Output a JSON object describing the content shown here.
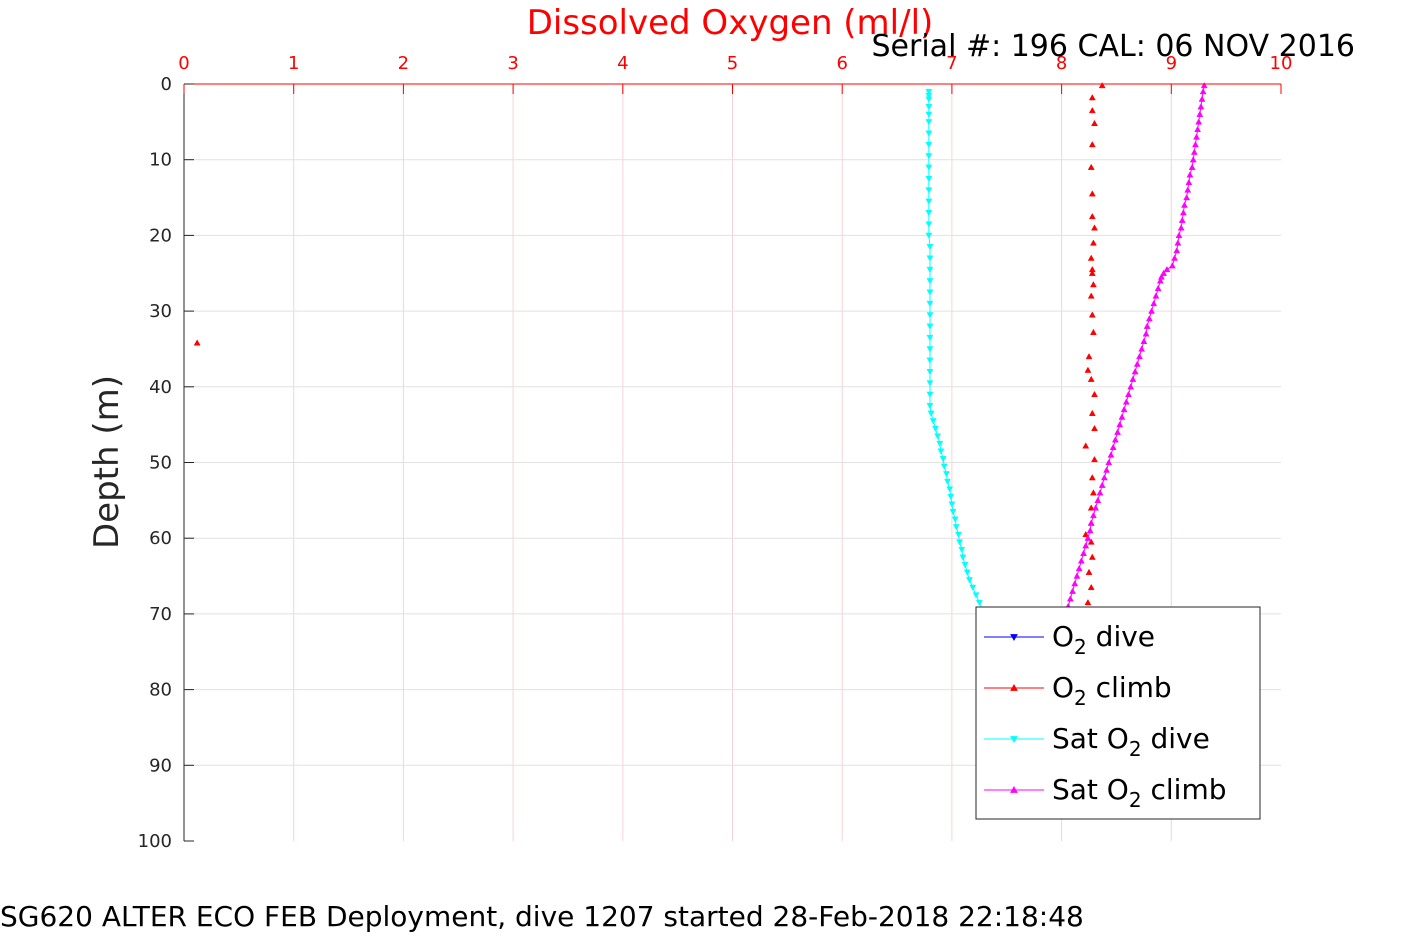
{
  "chart_data": {
    "type": "scatter",
    "x_axis_label": "Dissolved Oxygen (ml/l)",
    "y_axis_label": "Depth (m)",
    "serial_text": "Serial #: 196  CAL: 06 NOV 2016",
    "caption": "SG620 ALTER ECO FEB Deployment, dive 1207 started 28-Feb-2018 22:18:48",
    "xlim": [
      0,
      10
    ],
    "ylim": [
      0,
      100
    ],
    "y_reversed": true,
    "x_axis_position": "top",
    "x_ticks": [
      "0",
      "1",
      "2",
      "3",
      "4",
      "5",
      "6",
      "7",
      "8",
      "9",
      "10"
    ],
    "y_ticks": [
      "0",
      "10",
      "20",
      "30",
      "40",
      "50",
      "60",
      "70",
      "80",
      "90",
      "100"
    ],
    "grid": true,
    "legend_position": "bottom-right",
    "series": [
      {
        "name_parts": [
          "O",
          "2",
          " dive"
        ],
        "color": "#0000ff",
        "marker": "triangle-down",
        "points": []
      },
      {
        "name_parts": [
          "O",
          "2",
          " climb"
        ],
        "color": "#ff0000",
        "marker": "triangle-up",
        "points": [
          [
            8.37,
            0.2
          ],
          [
            8.28,
            1.8
          ],
          [
            8.28,
            3.5
          ],
          [
            8.3,
            5.2
          ],
          [
            8.28,
            8.0
          ],
          [
            8.27,
            11.0
          ],
          [
            8.28,
            14.5
          ],
          [
            8.28,
            17.5
          ],
          [
            8.3,
            19.0
          ],
          [
            8.29,
            21.0
          ],
          [
            8.27,
            23.0
          ],
          [
            8.28,
            24.5
          ],
          [
            8.28,
            25.0
          ],
          [
            8.29,
            26.5
          ],
          [
            8.27,
            28.0
          ],
          [
            8.28,
            30.5
          ],
          [
            8.29,
            32.8
          ],
          [
            0.12,
            34.2
          ],
          [
            8.25,
            36.0
          ],
          [
            8.24,
            37.8
          ],
          [
            8.27,
            39.0
          ],
          [
            8.3,
            41.0
          ],
          [
            8.28,
            43.5
          ],
          [
            8.3,
            45.5
          ],
          [
            8.22,
            47.8
          ],
          [
            8.3,
            49.6
          ],
          [
            8.28,
            52.0
          ],
          [
            8.29,
            54.0
          ],
          [
            8.27,
            56.0
          ],
          [
            8.27,
            58.0
          ],
          [
            8.22,
            59.5
          ],
          [
            8.27,
            60.5
          ],
          [
            8.28,
            62.5
          ],
          [
            8.25,
            64.5
          ],
          [
            8.27,
            66.5
          ],
          [
            8.24,
            68.5
          ]
        ]
      },
      {
        "name_parts": [
          "Sat O",
          "2",
          " dive"
        ],
        "color": "#00ffff",
        "marker": "triangle-down",
        "points": [
          [
            6.79,
            1.0
          ],
          [
            6.79,
            1.5
          ],
          [
            6.79,
            2.0
          ],
          [
            6.79,
            3.0
          ],
          [
            6.79,
            4.0
          ],
          [
            6.79,
            5.0
          ],
          [
            6.79,
            6.5
          ],
          [
            6.79,
            8.0
          ],
          [
            6.79,
            9.5
          ],
          [
            6.79,
            11.0
          ],
          [
            6.79,
            12.5
          ],
          [
            6.79,
            14.0
          ],
          [
            6.79,
            15.5
          ],
          [
            6.79,
            17.0
          ],
          [
            6.79,
            18.5
          ],
          [
            6.79,
            20.0
          ],
          [
            6.8,
            21.5
          ],
          [
            6.8,
            23.0
          ],
          [
            6.8,
            24.5
          ],
          [
            6.8,
            26.0
          ],
          [
            6.8,
            27.5
          ],
          [
            6.8,
            29.0
          ],
          [
            6.8,
            30.5
          ],
          [
            6.8,
            32.0
          ],
          [
            6.8,
            33.5
          ],
          [
            6.8,
            35.0
          ],
          [
            6.8,
            36.5
          ],
          [
            6.8,
            38.0
          ],
          [
            6.8,
            39.5
          ],
          [
            6.8,
            41.0
          ],
          [
            6.8,
            42.5
          ],
          [
            6.81,
            43.5
          ],
          [
            6.83,
            44.5
          ],
          [
            6.85,
            45.5
          ],
          [
            6.87,
            46.5
          ],
          [
            6.89,
            47.5
          ],
          [
            6.9,
            48.5
          ],
          [
            6.92,
            49.5
          ],
          [
            6.93,
            50.5
          ],
          [
            6.95,
            51.5
          ],
          [
            6.96,
            52.5
          ],
          [
            6.98,
            53.5
          ],
          [
            6.99,
            54.5
          ],
          [
            7.0,
            55.5
          ],
          [
            7.01,
            56.5
          ],
          [
            7.03,
            57.5
          ],
          [
            7.04,
            58.5
          ],
          [
            7.06,
            59.5
          ],
          [
            7.07,
            60.5
          ],
          [
            7.09,
            61.5
          ],
          [
            7.1,
            62.5
          ],
          [
            7.12,
            63.5
          ],
          [
            7.14,
            64.5
          ],
          [
            7.16,
            65.5
          ],
          [
            7.19,
            66.5
          ],
          [
            7.22,
            67.5
          ],
          [
            7.25,
            68.5
          ],
          [
            7.28,
            69.5
          ]
        ]
      },
      {
        "name_parts": [
          "Sat O",
          "2",
          " climb"
        ],
        "color": "#ff00ff",
        "marker": "triangle-up",
        "points": [
          [
            9.3,
            0.2
          ],
          [
            9.29,
            1.0
          ],
          [
            9.28,
            2.0
          ],
          [
            9.27,
            3.0
          ],
          [
            9.26,
            4.0
          ],
          [
            9.25,
            5.0
          ],
          [
            9.24,
            6.0
          ],
          [
            9.23,
            7.0
          ],
          [
            9.22,
            8.0
          ],
          [
            9.21,
            9.0
          ],
          [
            9.2,
            10.0
          ],
          [
            9.19,
            11.0
          ],
          [
            9.17,
            12.0
          ],
          [
            9.16,
            13.0
          ],
          [
            9.15,
            14.0
          ],
          [
            9.14,
            15.0
          ],
          [
            9.12,
            16.0
          ],
          [
            9.11,
            17.0
          ],
          [
            9.1,
            18.0
          ],
          [
            9.09,
            19.0
          ],
          [
            9.07,
            20.0
          ],
          [
            9.06,
            21.0
          ],
          [
            9.05,
            22.0
          ],
          [
            9.03,
            23.0
          ],
          [
            9.01,
            24.0
          ],
          [
            8.96,
            24.5
          ],
          [
            8.93,
            25.0
          ],
          [
            8.91,
            25.5
          ],
          [
            8.9,
            26.0
          ],
          [
            8.88,
            27.0
          ],
          [
            8.86,
            28.0
          ],
          [
            8.84,
            29.0
          ],
          [
            8.82,
            30.0
          ],
          [
            8.8,
            31.0
          ],
          [
            8.78,
            32.0
          ],
          [
            8.77,
            33.0
          ],
          [
            8.75,
            34.0
          ],
          [
            8.73,
            35.0
          ],
          [
            8.71,
            36.0
          ],
          [
            8.69,
            37.0
          ],
          [
            8.67,
            38.0
          ],
          [
            8.65,
            39.0
          ],
          [
            8.63,
            40.0
          ],
          [
            8.61,
            41.0
          ],
          [
            8.59,
            42.0
          ],
          [
            8.57,
            43.0
          ],
          [
            8.55,
            44.0
          ],
          [
            8.53,
            45.0
          ],
          [
            8.51,
            46.0
          ],
          [
            8.49,
            47.0
          ],
          [
            8.47,
            48.0
          ],
          [
            8.45,
            49.0
          ],
          [
            8.43,
            50.0
          ],
          [
            8.41,
            51.0
          ],
          [
            8.39,
            52.0
          ],
          [
            8.37,
            53.0
          ],
          [
            8.35,
            54.0
          ],
          [
            8.33,
            55.0
          ],
          [
            8.31,
            56.0
          ],
          [
            8.29,
            57.0
          ],
          [
            8.27,
            58.0
          ],
          [
            8.26,
            59.0
          ],
          [
            8.24,
            60.0
          ],
          [
            8.22,
            61.0
          ],
          [
            8.2,
            62.0
          ],
          [
            8.18,
            63.0
          ],
          [
            8.16,
            64.0
          ],
          [
            8.14,
            65.0
          ],
          [
            8.12,
            66.0
          ],
          [
            8.1,
            67.0
          ],
          [
            8.08,
            68.0
          ],
          [
            8.06,
            69.0
          ]
        ]
      }
    ]
  }
}
